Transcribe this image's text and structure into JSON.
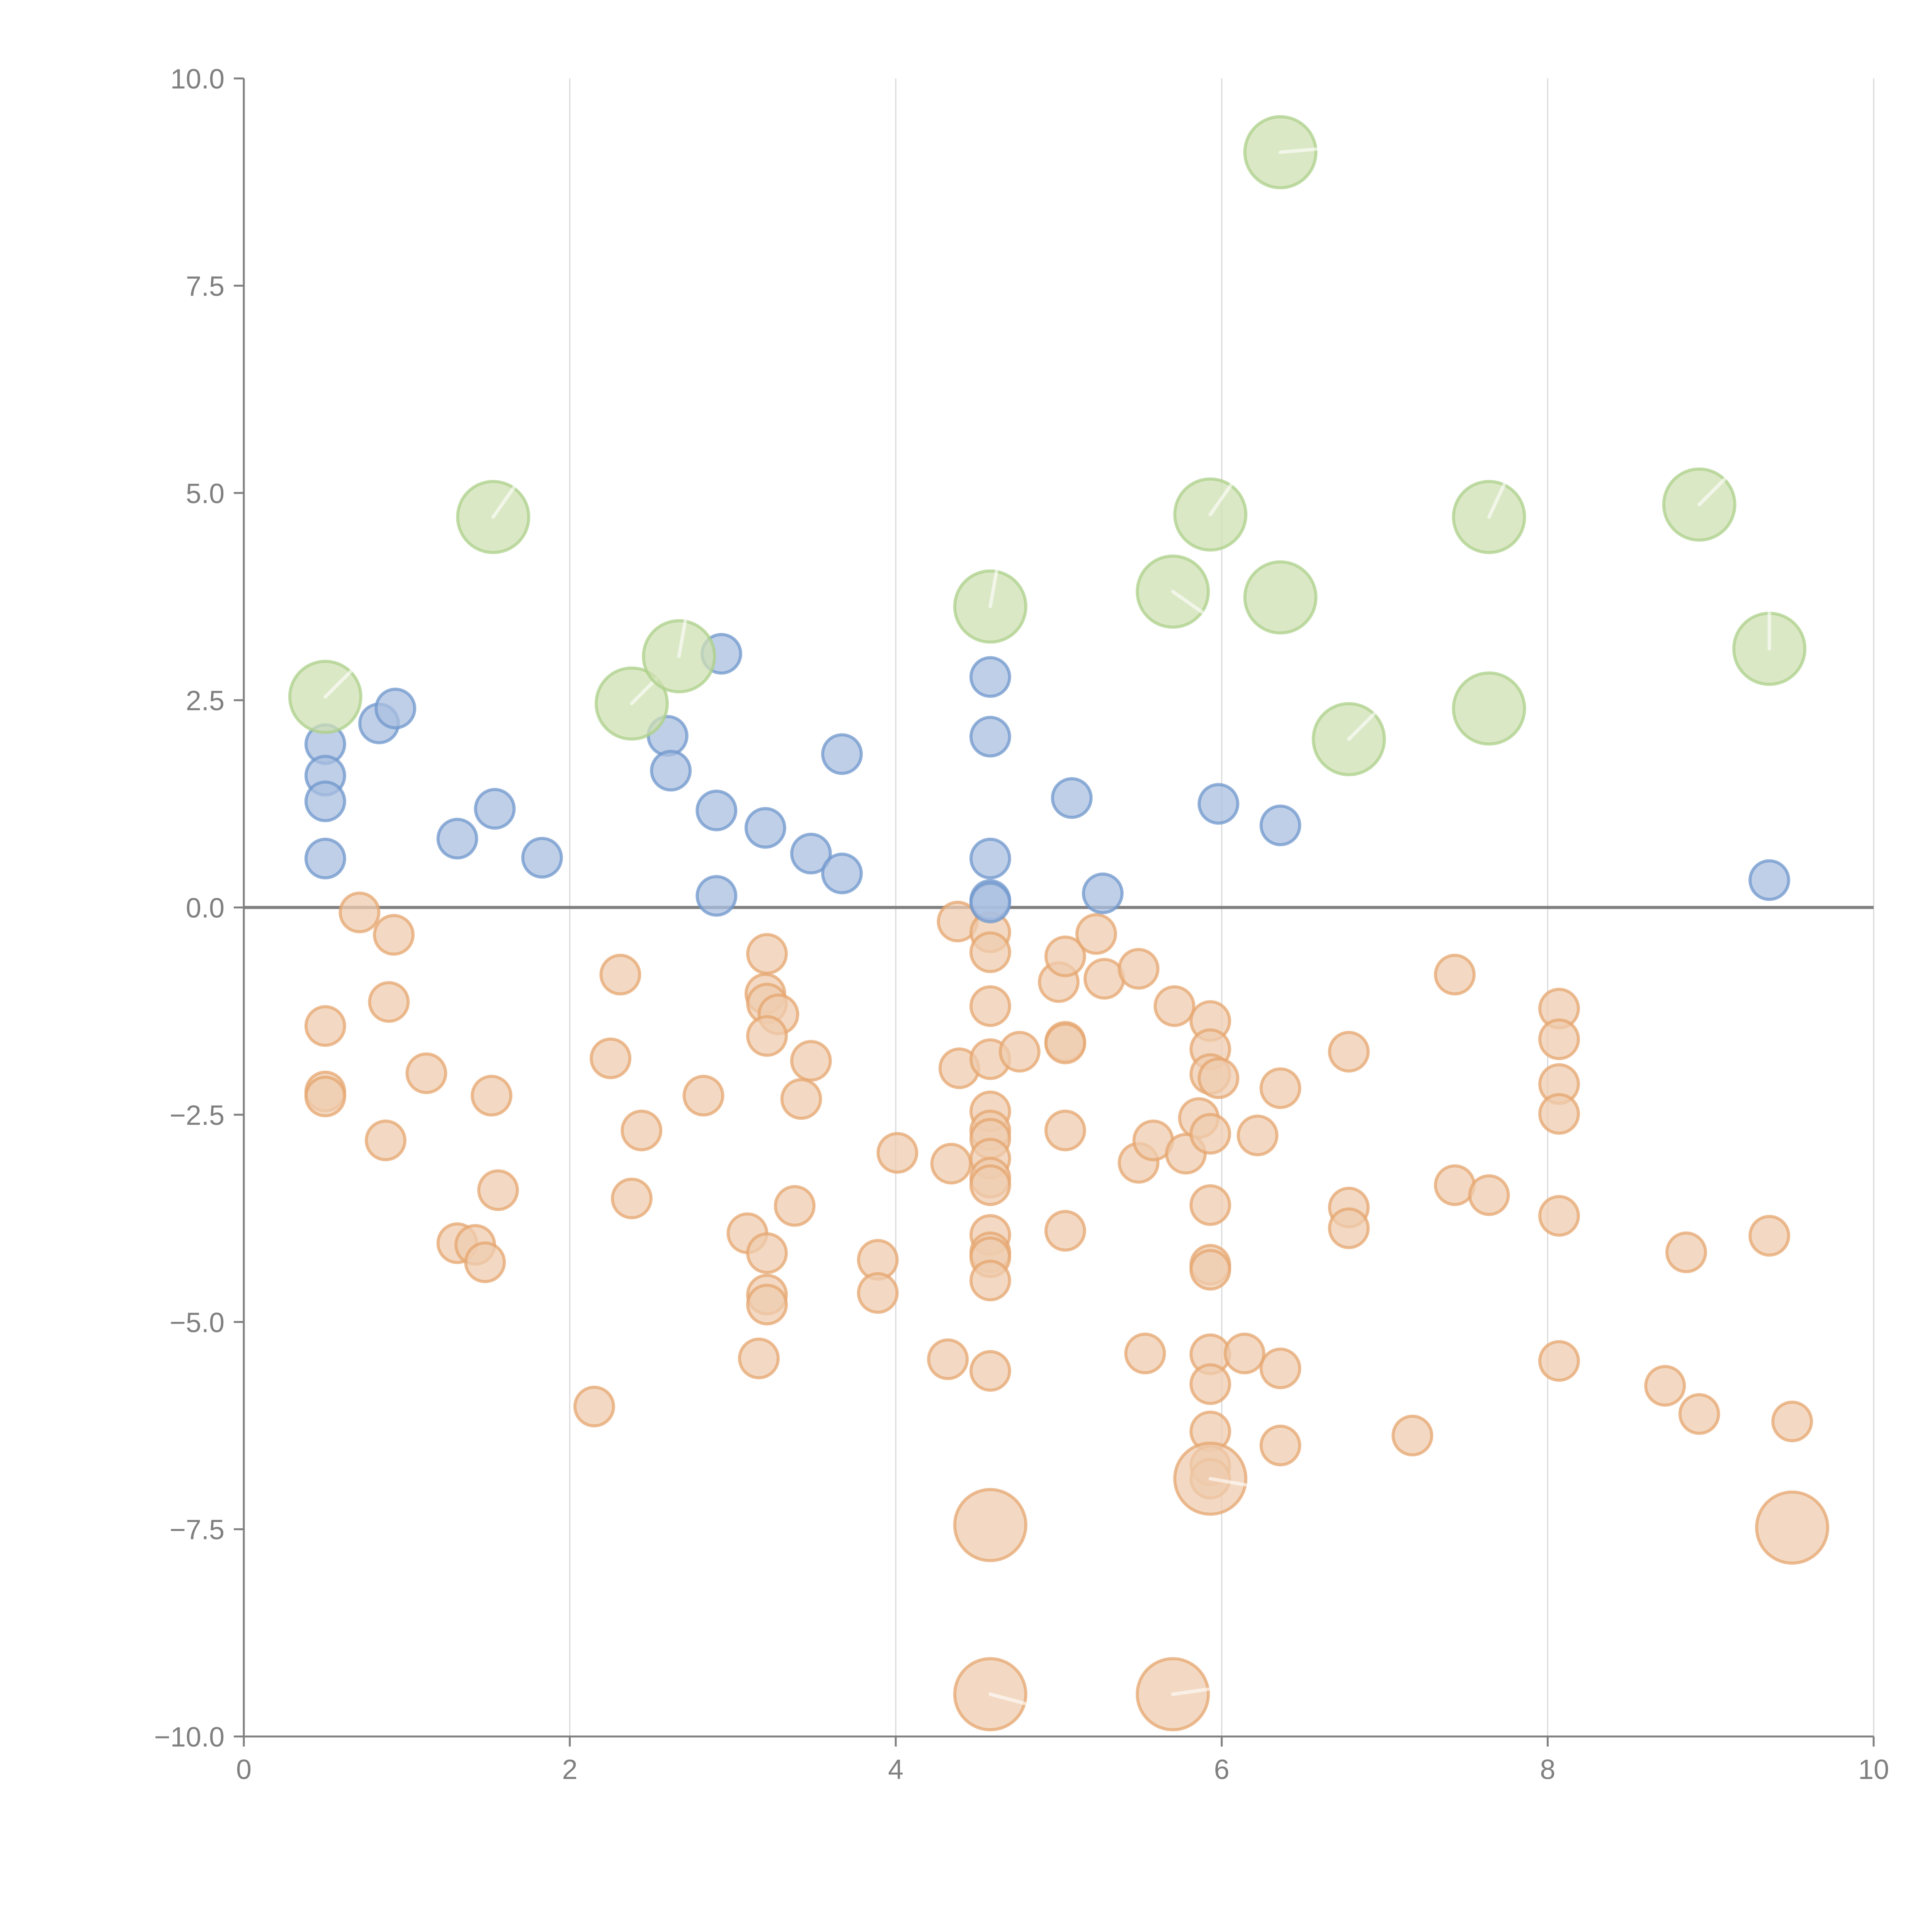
{
  "chart_data": {
    "type": "scatter",
    "title": "",
    "xlabel": "",
    "ylabel": "",
    "xlim": [
      0,
      10
    ],
    "ylim": [
      -10,
      10
    ],
    "x_ticks": [
      0,
      2,
      4,
      6,
      8,
      10
    ],
    "x_tick_labels": [
      "0",
      "2",
      "4",
      "6",
      "8",
      "10"
    ],
    "y_ticks": [
      10,
      7.5,
      5,
      2.5,
      0,
      -2.5,
      -5,
      -7.5,
      -10
    ],
    "y_tick_labels": [
      "10.0",
      "7.5",
      "5.0",
      "2.5",
      "0.0",
      "−2.5",
      "−5.0",
      "−7.5",
      "−10.0"
    ],
    "grid": "vertical",
    "zero_line": true,
    "legend": "none",
    "colors": {
      "blue": {
        "fill": "#a9bfe0",
        "stroke": "#6f97cc"
      },
      "green": {
        "fill": "#cfe0b3",
        "stroke": "#acd08a"
      },
      "orange": {
        "fill": "#efccaf",
        "stroke": "#e6a56f"
      }
    },
    "series": [
      {
        "name": "blue",
        "size": "small",
        "points": [
          [
            0.5,
            1.97
          ],
          [
            0.5,
            1.59
          ],
          [
            0.5,
            1.28
          ],
          [
            0.5,
            0.59
          ],
          [
            0.83,
            2.22
          ],
          [
            0.93,
            2.4
          ],
          [
            1.31,
            0.83
          ],
          [
            1.54,
            1.19
          ],
          [
            1.83,
            0.6
          ],
          [
            2.6,
            2.07
          ],
          [
            2.62,
            1.65
          ],
          [
            2.93,
            3.06
          ],
          [
            2.9,
            1.17
          ],
          [
            2.9,
            0.14
          ],
          [
            3.2,
            0.96
          ],
          [
            3.48,
            0.65
          ],
          [
            3.67,
            1.85
          ],
          [
            3.67,
            0.41
          ],
          [
            4.58,
            2.78
          ],
          [
            4.58,
            2.06
          ],
          [
            4.58,
            0.59
          ],
          [
            4.58,
            0.09
          ],
          [
            4.58,
            0.06
          ],
          [
            5.08,
            1.32
          ],
          [
            5.27,
            0.17
          ],
          [
            5.98,
            1.25
          ],
          [
            6.36,
            0.99
          ],
          [
            9.36,
            0.33
          ]
        ]
      },
      {
        "name": "green",
        "size": "large",
        "points": [
          [
            0.5,
            2.54,
            45
          ],
          [
            1.53,
            4.71,
            55
          ],
          [
            2.38,
            2.46,
            45
          ],
          [
            2.67,
            3.03,
            80
          ],
          [
            4.58,
            3.63,
            80
          ],
          [
            5.7,
            3.81,
            -35
          ],
          [
            5.93,
            4.74,
            55
          ],
          [
            6.36,
            9.11,
            5
          ],
          [
            6.36,
            3.74,
            null
          ],
          [
            6.78,
            2.03,
            45
          ],
          [
            7.64,
            4.71,
            65
          ],
          [
            7.64,
            2.4,
            null
          ],
          [
            8.93,
            4.86,
            45
          ],
          [
            9.36,
            3.12,
            90
          ]
        ]
      },
      {
        "name": "orange",
        "size": "small",
        "points": [
          [
            0.71,
            -0.06
          ],
          [
            0.92,
            -0.33
          ],
          [
            0.5,
            -1.43
          ],
          [
            0.89,
            -1.14
          ],
          [
            1.12,
            -2.0
          ],
          [
            0.5,
            -2.22
          ],
          [
            0.5,
            -2.28
          ],
          [
            0.87,
            -2.81
          ],
          [
            1.52,
            -2.27
          ],
          [
            1.56,
            -3.41
          ],
          [
            1.31,
            -4.05
          ],
          [
            1.42,
            -4.07
          ],
          [
            1.48,
            -4.28
          ],
          [
            2.15,
            -6.02
          ],
          [
            2.31,
            -0.81
          ],
          [
            2.25,
            -1.82
          ],
          [
            2.44,
            -2.69
          ],
          [
            2.38,
            -3.51
          ],
          [
            2.82,
            -2.27
          ],
          [
            3.09,
            -3.93
          ],
          [
            3.16,
            -5.44
          ],
          [
            3.21,
            -0.56
          ],
          [
            3.2,
            -1.04
          ],
          [
            3.21,
            -1.16
          ],
          [
            3.28,
            -1.29
          ],
          [
            3.21,
            -1.55
          ],
          [
            3.48,
            -1.85
          ],
          [
            3.42,
            -2.31
          ],
          [
            3.38,
            -3.6
          ],
          [
            3.21,
            -4.17
          ],
          [
            3.21,
            -4.67
          ],
          [
            3.21,
            -4.79
          ],
          [
            3.89,
            -4.25
          ],
          [
            3.89,
            -4.65
          ],
          [
            4.01,
            -2.96
          ],
          [
            4.32,
            -5.45
          ],
          [
            4.34,
            -3.09
          ],
          [
            4.38,
            -0.17
          ],
          [
            4.39,
            -1.94
          ],
          [
            4.58,
            -0.3
          ],
          [
            4.58,
            -0.54
          ],
          [
            4.58,
            -1.19
          ],
          [
            4.58,
            -1.83
          ],
          [
            4.58,
            -2.46
          ],
          [
            4.58,
            -2.69
          ],
          [
            4.58,
            -2.79
          ],
          [
            4.58,
            -3.03
          ],
          [
            4.58,
            -3.26
          ],
          [
            4.58,
            -3.35
          ],
          [
            4.58,
            -3.95
          ],
          [
            4.58,
            -4.16
          ],
          [
            4.58,
            -4.22
          ],
          [
            4.58,
            -4.5
          ],
          [
            4.58,
            -5.59
          ],
          [
            4.76,
            -1.74
          ],
          [
            5.0,
            -0.9
          ],
          [
            5.04,
            -0.59
          ],
          [
            5.04,
            -1.62
          ],
          [
            5.04,
            -1.64
          ],
          [
            5.04,
            -2.69
          ],
          [
            5.04,
            -3.9
          ],
          [
            5.23,
            -0.32
          ],
          [
            5.28,
            -0.86
          ],
          [
            5.49,
            -0.74
          ],
          [
            5.49,
            -3.08
          ],
          [
            5.53,
            -5.38
          ],
          [
            5.58,
            -2.81
          ],
          [
            5.71,
            -1.19
          ],
          [
            5.78,
            -2.97
          ],
          [
            5.86,
            -2.54
          ],
          [
            5.93,
            -1.37
          ],
          [
            5.93,
            -1.71
          ],
          [
            5.93,
            -2.01
          ],
          [
            5.98,
            -2.06
          ],
          [
            5.93,
            -2.73
          ],
          [
            5.93,
            -3.59
          ],
          [
            5.93,
            -4.31
          ],
          [
            5.93,
            -4.37
          ],
          [
            5.93,
            -5.39
          ],
          [
            5.93,
            -5.75
          ],
          [
            5.93,
            -6.32
          ],
          [
            5.93,
            -6.73
          ],
          [
            5.93,
            -6.89
          ],
          [
            6.14,
            -5.38
          ],
          [
            6.22,
            -2.75
          ],
          [
            6.36,
            -2.18
          ],
          [
            6.36,
            -5.56
          ],
          [
            6.36,
            -6.49
          ],
          [
            6.78,
            -1.74
          ],
          [
            6.78,
            -3.62
          ],
          [
            6.78,
            -3.87
          ],
          [
            7.17,
            -6.37
          ],
          [
            7.43,
            -0.81
          ],
          [
            7.43,
            -3.35
          ],
          [
            7.64,
            -3.47
          ],
          [
            8.07,
            -1.22
          ],
          [
            8.07,
            -1.59
          ],
          [
            8.07,
            -2.13
          ],
          [
            8.07,
            -2.49
          ],
          [
            8.07,
            -3.72
          ],
          [
            8.07,
            -5.47
          ],
          [
            8.72,
            -5.77
          ],
          [
            8.85,
            -4.16
          ],
          [
            8.93,
            -6.11
          ],
          [
            9.36,
            -3.96
          ],
          [
            9.5,
            -6.2
          ]
        ]
      },
      {
        "name": "orange-large",
        "color": "orange",
        "size": "large",
        "points": [
          [
            4.58,
            -7.45,
            null
          ],
          [
            5.93,
            -6.89,
            -10
          ],
          [
            4.58,
            -9.49,
            -15
          ],
          [
            5.7,
            -9.49,
            8
          ],
          [
            9.5,
            -7.48,
            null
          ]
        ]
      }
    ]
  }
}
